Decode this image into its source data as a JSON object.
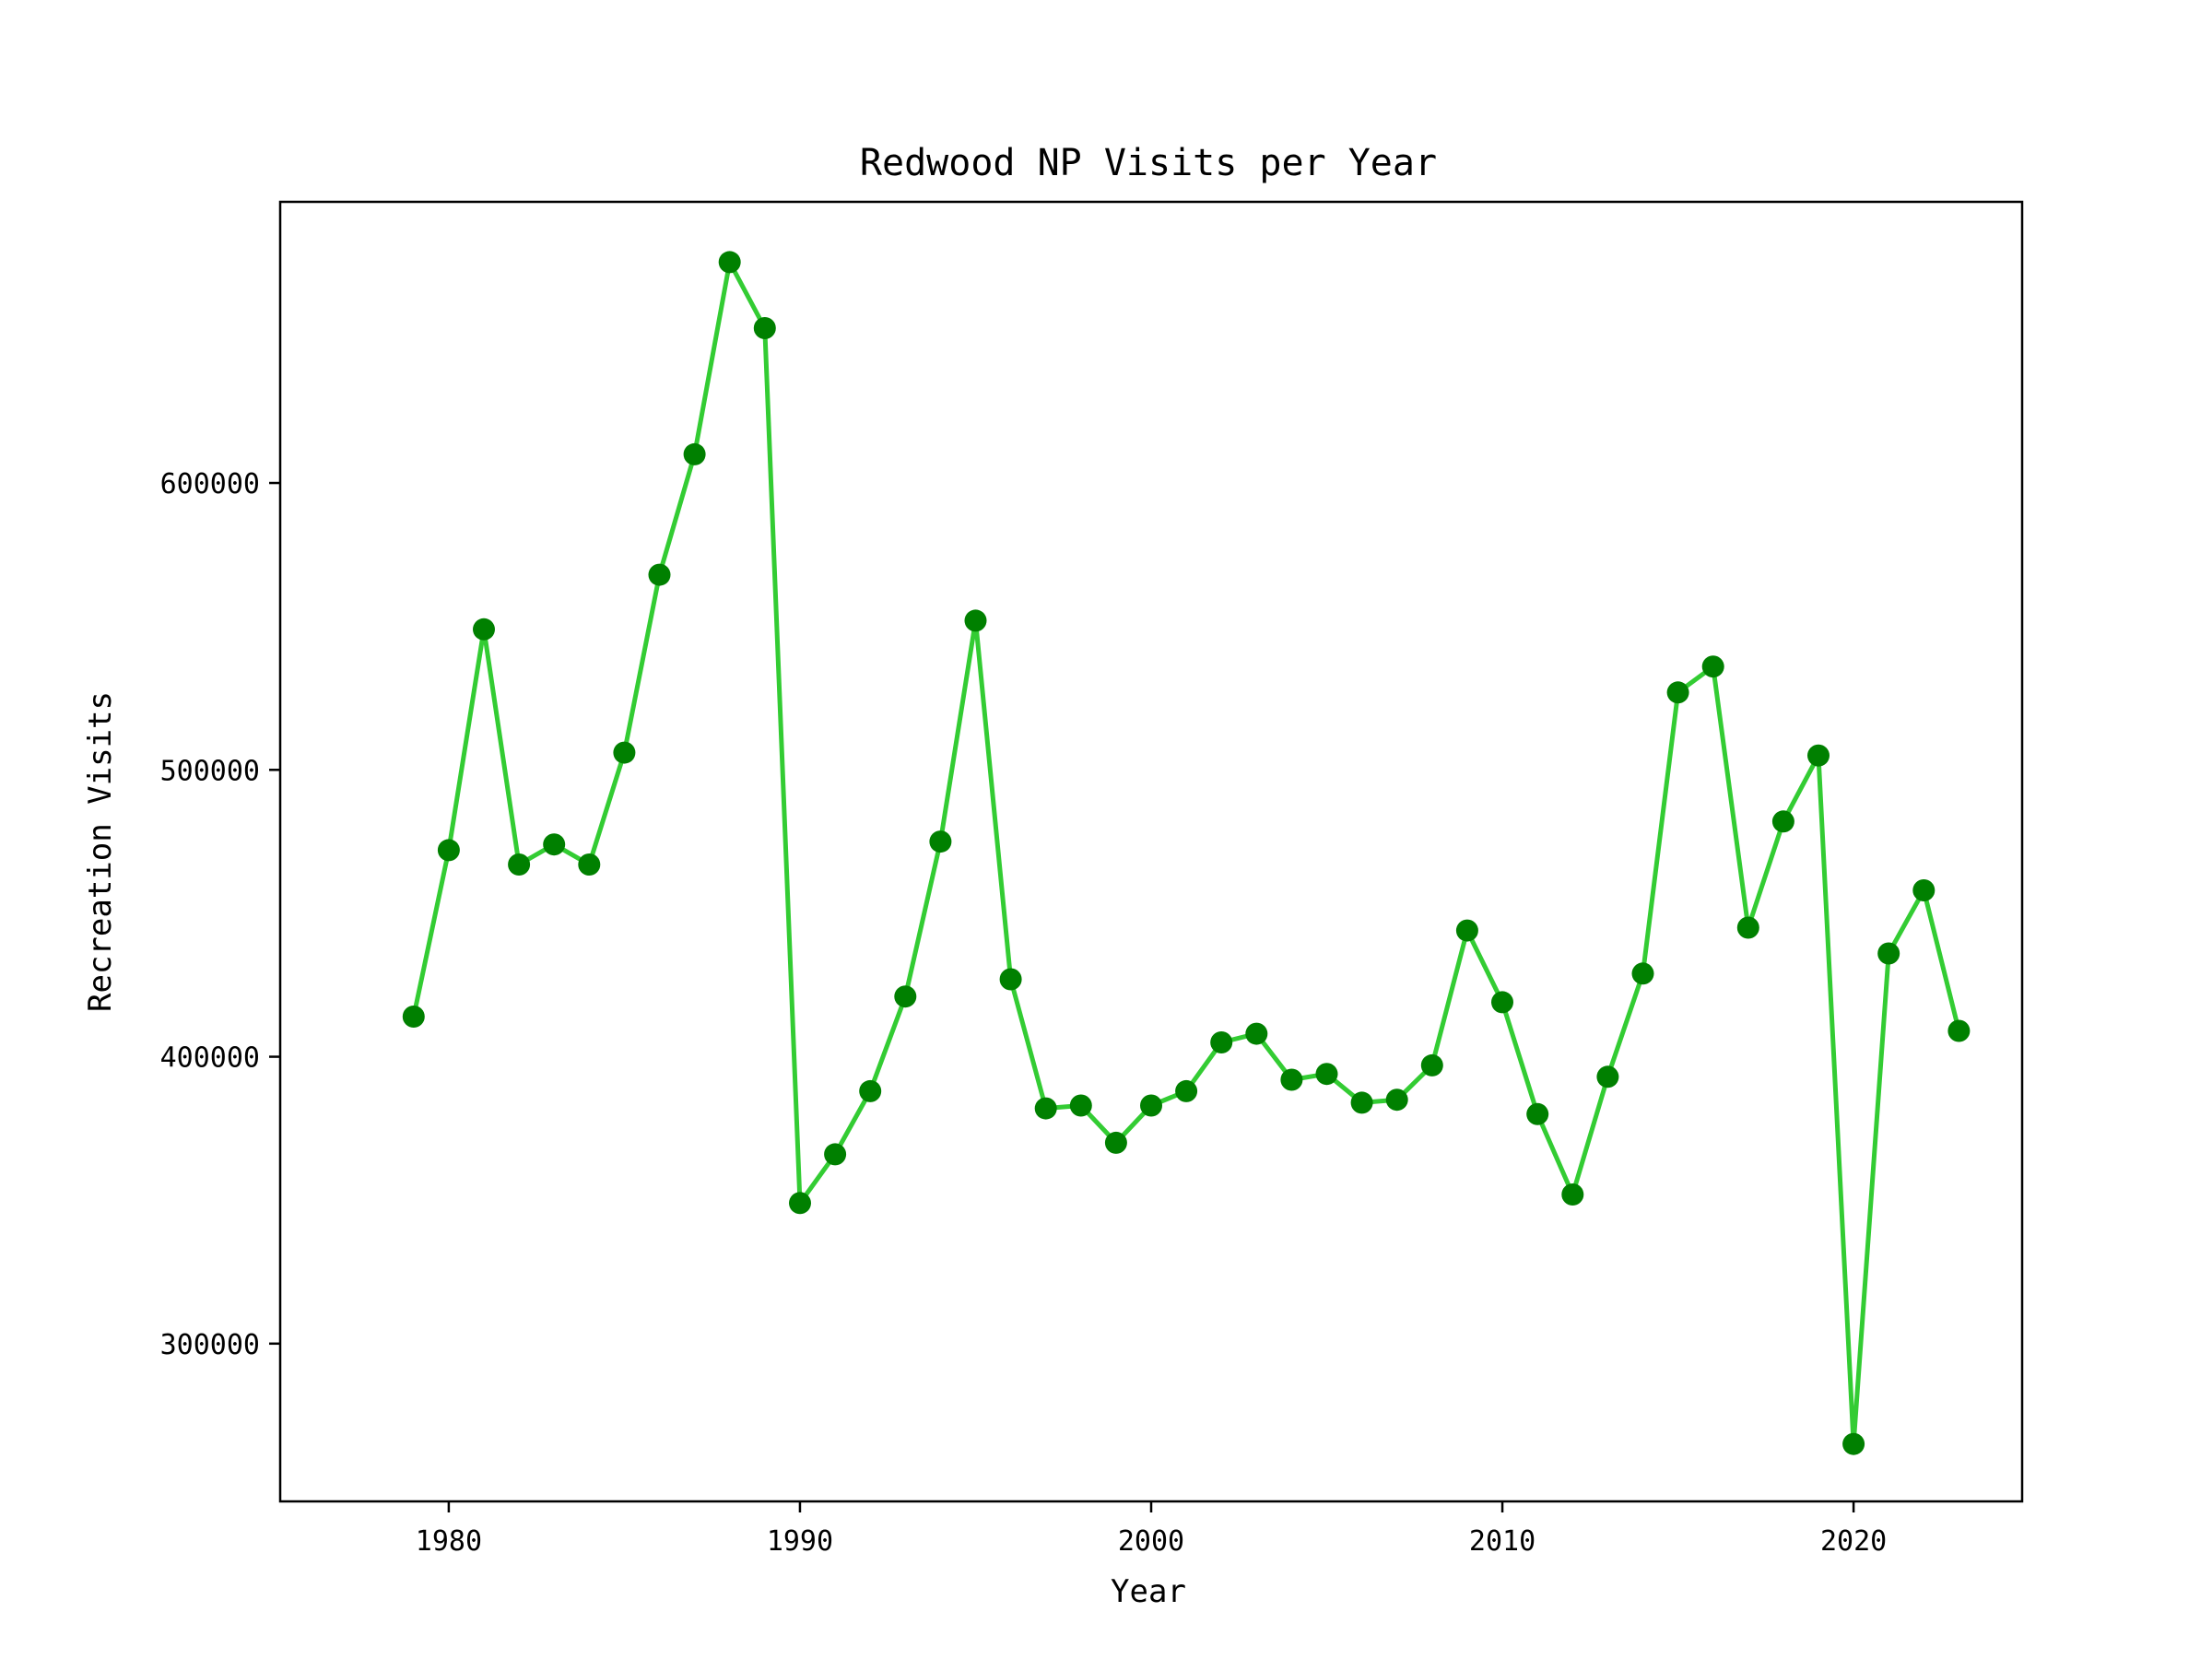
{
  "chart_data": {
    "type": "line",
    "title": "Redwood NP Visits per Year",
    "xlabel": "Year",
    "ylabel": "Recreation Visits",
    "xlim": [
      1975.2,
      2024.8
    ],
    "ylim": [
      245000,
      698000
    ],
    "x_ticks": [
      1980,
      1990,
      2000,
      2010,
      2020
    ],
    "y_ticks": [
      300000,
      400000,
      500000,
      600000
    ],
    "grid": false,
    "colors": {
      "line": "#33cc33",
      "marker": "#008000",
      "axes": "#000000"
    },
    "series": [
      {
        "x": [
          1979,
          1980,
          1981,
          1982,
          1983,
          1984,
          1985,
          1986,
          1987,
          1988,
          1989,
          1990,
          1991,
          1992,
          1993,
          1994,
          1995,
          1996,
          1997,
          1998,
          1999,
          2000,
          2001,
          2002,
          2003,
          2004,
          2005,
          2006,
          2007,
          2008,
          2009,
          2010,
          2011,
          2012,
          2013,
          2014,
          2015,
          2016,
          2017,
          2018,
          2019,
          2020,
          2021,
          2022,
          2023
        ],
        "values": [
          414000,
          472000,
          549000,
          467000,
          474000,
          467000,
          506000,
          568000,
          610000,
          677000,
          654000,
          349000,
          366000,
          388000,
          421000,
          475000,
          552000,
          427000,
          382000,
          383000,
          370000,
          383000,
          388000,
          405000,
          408000,
          392000,
          394000,
          384000,
          385000,
          397000,
          444000,
          419000,
          380000,
          352000,
          393000,
          429000,
          527000,
          536000,
          445000,
          482000,
          505000,
          265000,
          436000,
          458000,
          409000
        ]
      }
    ]
  }
}
